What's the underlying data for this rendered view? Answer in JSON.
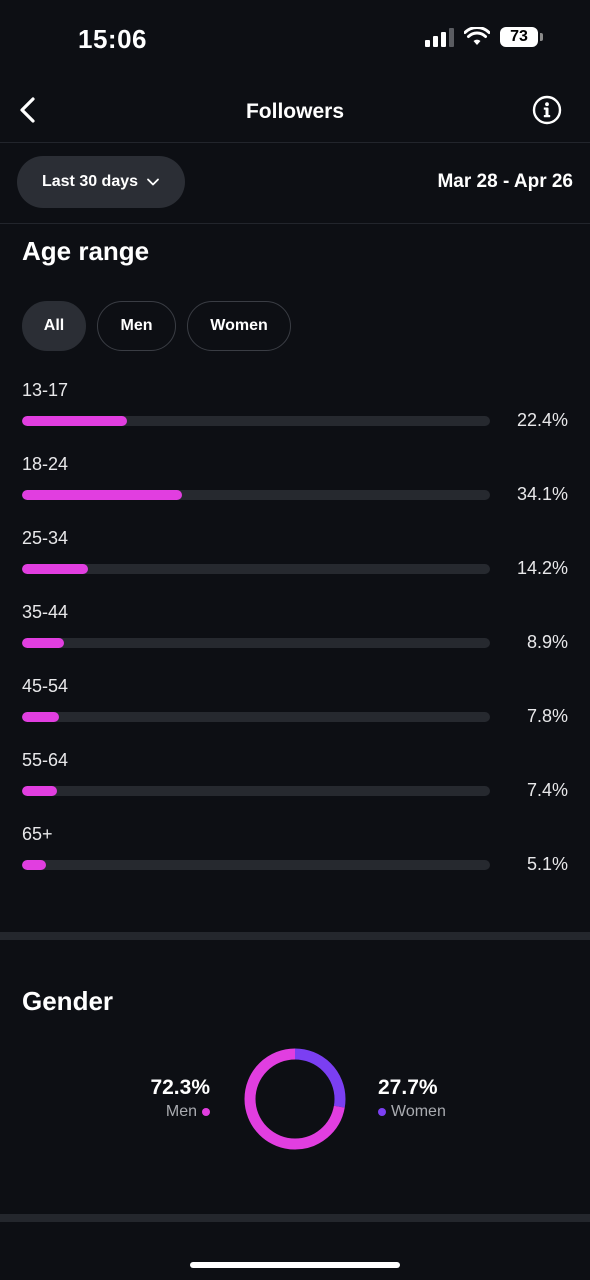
{
  "status_bar": {
    "time": "15:06",
    "battery": "73"
  },
  "nav": {
    "title": "Followers"
  },
  "filters": {
    "range_label": "Last 30 days",
    "date_range": "Mar 28 - Apr 26"
  },
  "age_section": {
    "title": "Age range",
    "chips": [
      "All",
      "Men",
      "Women"
    ],
    "active_chip": "All",
    "rows": [
      {
        "label": "13-17",
        "value": 22.4,
        "display": "22.4%"
      },
      {
        "label": "18-24",
        "value": 34.1,
        "display": "34.1%"
      },
      {
        "label": "25-34",
        "value": 14.2,
        "display": "14.2%"
      },
      {
        "label": "35-44",
        "value": 8.9,
        "display": "8.9%"
      },
      {
        "label": "45-54",
        "value": 7.8,
        "display": "7.8%"
      },
      {
        "label": "55-64",
        "value": 7.4,
        "display": "7.4%"
      },
      {
        "label": "65+",
        "value": 5.1,
        "display": "5.1%"
      }
    ]
  },
  "gender_section": {
    "title": "Gender",
    "men": {
      "pct": "72.3%",
      "label": "Men",
      "value": 72.3
    },
    "women": {
      "pct": "27.7%",
      "label": "Women",
      "value": 27.7
    }
  },
  "colors": {
    "accent": "#e13ee0",
    "women": "#7b3ff2",
    "background": "#0d0f14",
    "track": "#26292f"
  }
}
